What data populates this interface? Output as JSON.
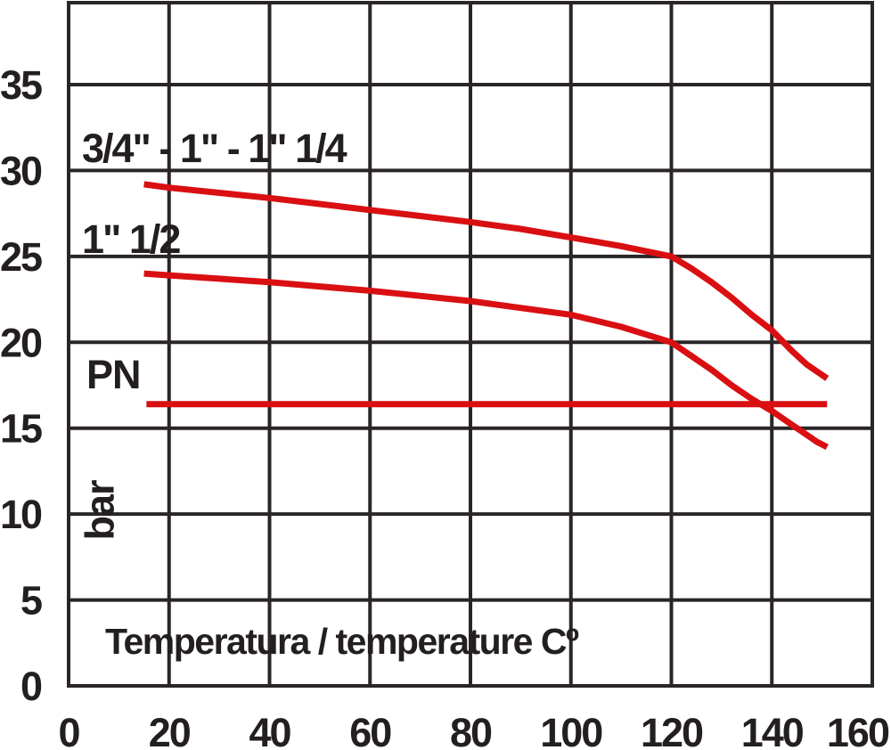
{
  "colors": {
    "line_red": "#d90f12",
    "ink": "#231f20",
    "grid": "#2a2526",
    "background": "#ffffff"
  },
  "chart_data": {
    "type": "line",
    "title": "",
    "xlabel": "Temperatura / temperature Cº",
    "ylabel": "bar",
    "xlim": [
      0,
      160
    ],
    "ylim": [
      0,
      40
    ],
    "x_ticks": [
      0,
      20,
      40,
      60,
      80,
      100,
      120,
      140,
      160
    ],
    "y_ticks": [
      0,
      5,
      10,
      15,
      20,
      25,
      30,
      35
    ],
    "grid": true,
    "legend": "inline-annotations",
    "labels": {
      "series_large": "3/4\" - 1\" - 1\" 1/4",
      "series_small": "1\" 1/2",
      "pn": "PN"
    },
    "series": [
      {
        "name": "3/4\" - 1\" - 1\" 1/4",
        "color": "#d90f12",
        "points": [
          [
            15,
            29.2
          ],
          [
            20,
            29.0
          ],
          [
            30,
            28.7
          ],
          [
            40,
            28.4
          ],
          [
            50,
            28.05
          ],
          [
            60,
            27.7
          ],
          [
            70,
            27.35
          ],
          [
            80,
            27.0
          ],
          [
            90,
            26.6
          ],
          [
            100,
            26.1
          ],
          [
            110,
            25.6
          ],
          [
            120,
            25.0
          ],
          [
            124,
            24.3
          ],
          [
            128,
            23.5
          ],
          [
            132,
            22.6
          ],
          [
            136,
            21.6
          ],
          [
            140,
            20.7
          ],
          [
            144,
            19.5
          ],
          [
            147,
            18.7
          ],
          [
            149,
            18.3
          ],
          [
            151,
            17.9
          ]
        ]
      },
      {
        "name": "1\" 1/2",
        "color": "#d90f12",
        "points": [
          [
            15,
            24.0
          ],
          [
            20,
            23.9
          ],
          [
            30,
            23.7
          ],
          [
            40,
            23.5
          ],
          [
            50,
            23.25
          ],
          [
            60,
            23.0
          ],
          [
            70,
            22.7
          ],
          [
            80,
            22.4
          ],
          [
            90,
            22.0
          ],
          [
            100,
            21.6
          ],
          [
            110,
            20.9
          ],
          [
            120,
            20.0
          ],
          [
            124,
            19.2
          ],
          [
            128,
            18.4
          ],
          [
            132,
            17.5
          ],
          [
            136,
            16.7
          ],
          [
            140,
            16.0
          ],
          [
            144,
            15.2
          ],
          [
            147,
            14.6
          ],
          [
            149,
            14.2
          ],
          [
            151,
            13.9
          ]
        ]
      },
      {
        "name": "PN",
        "color": "#d90f12",
        "points": [
          [
            15.5,
            16.4
          ],
          [
            151,
            16.4
          ]
        ]
      }
    ]
  }
}
